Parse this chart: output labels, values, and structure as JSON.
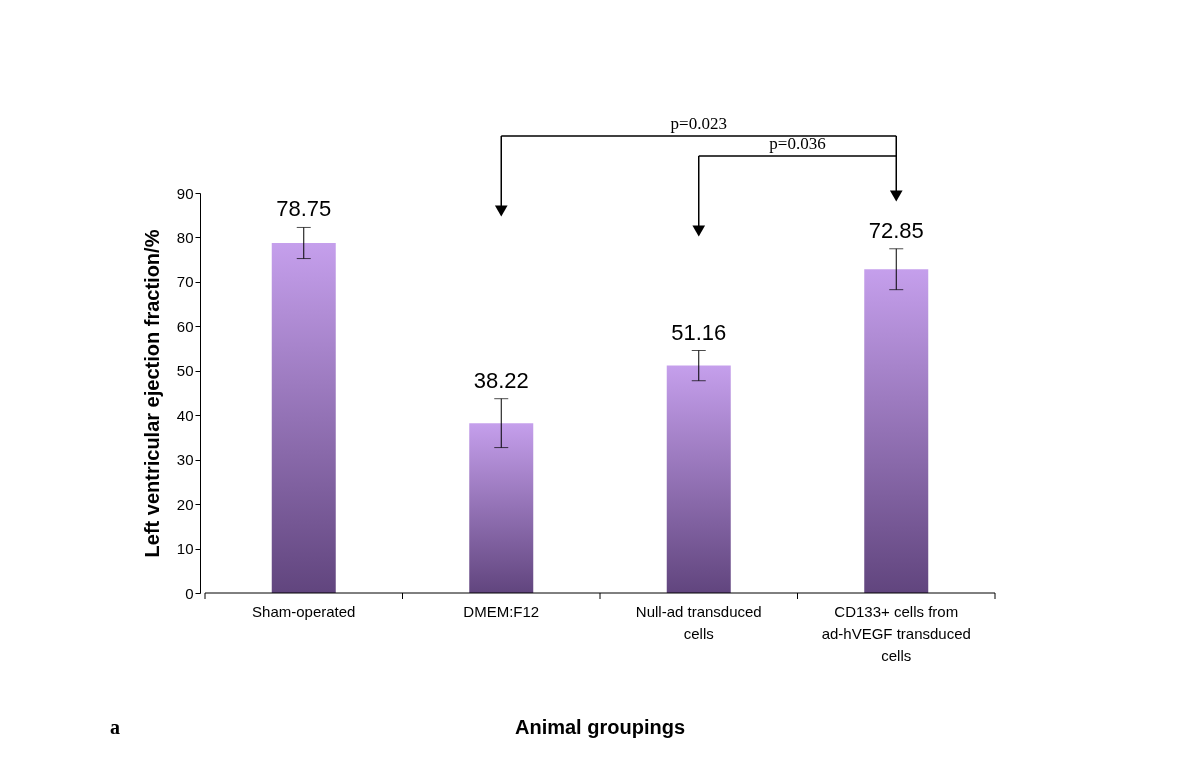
{
  "chart_data": {
    "type": "bar",
    "categories": [
      "Sham-operated",
      "DMEM:F12",
      "Null-ad transduced cells",
      "CD133+ cells from ad-hVEGF transduced cells"
    ],
    "values": [
      78.75,
      38.22,
      51.16,
      72.85
    ],
    "errors": [
      3.5,
      5.5,
      3.4,
      4.6
    ],
    "color": "#b27fe6",
    "data_labels": true,
    "xlabel": "Animal groupings",
    "ylabel": "Left ventricular ejection fraction/%",
    "ylim": [
      0,
      90
    ],
    "yticks": [
      0,
      10,
      20,
      30,
      40,
      50,
      60,
      70,
      80,
      90
    ],
    "grid": false,
    "annotations": [
      "p=0.023",
      "p=0.036",
      "a"
    ]
  }
}
